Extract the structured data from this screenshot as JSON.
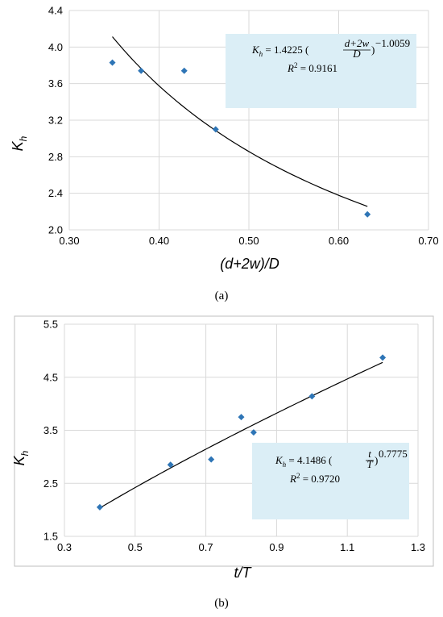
{
  "chart_data": [
    {
      "type": "scatter",
      "subcaption": "(a)",
      "xlabel": "(d+2w)/D",
      "ylabel": "K",
      "ylabel_sub": "h",
      "xlim": [
        0.3,
        0.7
      ],
      "ylim": [
        2.0,
        4.4
      ],
      "xticks": [
        "0.30",
        "0.40",
        "0.50",
        "0.60",
        "0.70"
      ],
      "yticks": [
        "2.0",
        "2.4",
        "2.8",
        "3.2",
        "3.6",
        "4.0",
        "4.4"
      ],
      "grid": true,
      "marker_color": "#2e75b6",
      "points": [
        {
          "x": 0.348,
          "y": 3.83
        },
        {
          "x": 0.38,
          "y": 3.74
        },
        {
          "x": 0.428,
          "y": 3.74
        },
        {
          "x": 0.463,
          "y": 3.1
        },
        {
          "x": 0.632,
          "y": 2.17
        }
      ],
      "trendline": {
        "type": "power",
        "a": 1.4225,
        "b": -1.0059,
        "x_from": 0.348,
        "x_to": 0.632
      },
      "annotation": {
        "box_color": "#dbeef6",
        "lhs": "K",
        "lhs_sub": "h",
        "coef": " = 1.4225 (",
        "frac_num": "d+2w",
        "frac_den": "D",
        "close": ")",
        "exponent": "−1.0059",
        "r2_label": "R",
        "r2_sup": "2",
        "r2_value": " = 0.9161"
      }
    },
    {
      "type": "scatter",
      "subcaption": "(b)",
      "xlabel": "t/T",
      "ylabel": "K",
      "ylabel_sub": "h",
      "xlim": [
        0.3,
        1.3
      ],
      "ylim": [
        1.5,
        5.5
      ],
      "xticks": [
        "0.3",
        "0.5",
        "0.7",
        "0.9",
        "1.1",
        "1.3"
      ],
      "yticks": [
        "1.5",
        "2.5",
        "3.5",
        "4.5",
        "5.5"
      ],
      "grid": true,
      "marker_color": "#2e75b6",
      "points": [
        {
          "x": 0.4,
          "y": 2.05
        },
        {
          "x": 0.6,
          "y": 2.85
        },
        {
          "x": 0.715,
          "y": 2.95
        },
        {
          "x": 0.8,
          "y": 3.75
        },
        {
          "x": 0.835,
          "y": 3.46
        },
        {
          "x": 1.0,
          "y": 4.14
        },
        {
          "x": 1.2,
          "y": 4.87
        }
      ],
      "trendline": {
        "type": "power",
        "a": 4.1486,
        "b": 0.7775,
        "x_from": 0.4,
        "x_to": 1.2
      },
      "annotation": {
        "box_color": "#dbeef6",
        "lhs": "K",
        "lhs_sub": "h",
        "coef": " = 4.1486 (",
        "frac_num": "t",
        "frac_den": "T",
        "close": ")",
        "exponent": "0.7775",
        "r2_label": "R",
        "r2_sup": "2",
        "r2_value": " = 0.9720"
      }
    }
  ]
}
